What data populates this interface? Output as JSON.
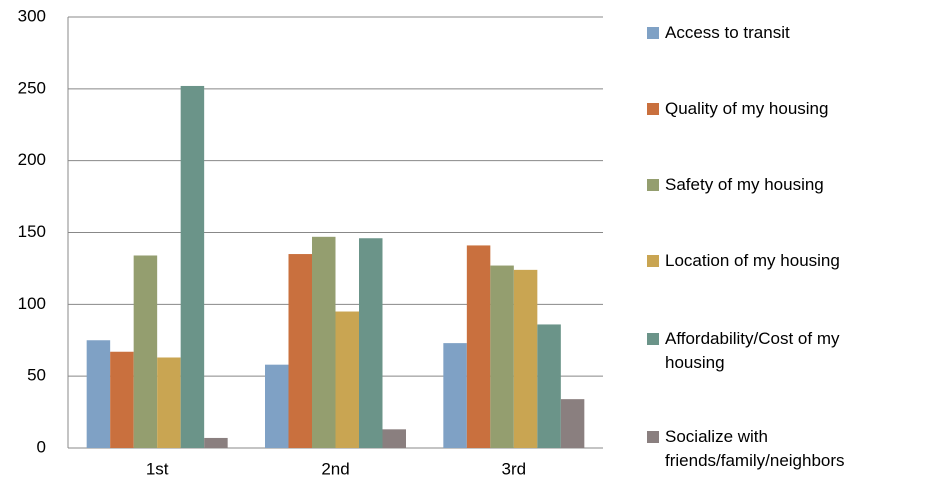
{
  "chart_data": {
    "type": "bar",
    "categories": [
      "1st",
      "2nd",
      "3rd"
    ],
    "series": [
      {
        "name": "Access to transit",
        "color": "#7fa1c5",
        "values": [
          75,
          58,
          73
        ]
      },
      {
        "name": "Quality of my housing",
        "color": "#c9703e",
        "values": [
          67,
          135,
          141
        ]
      },
      {
        "name": "Safety of my housing",
        "color": "#949e6f",
        "values": [
          134,
          147,
          127
        ]
      },
      {
        "name": "Location of my housing",
        "color": "#c9a552",
        "values": [
          63,
          95,
          124
        ]
      },
      {
        "name": "Affordability/Cost of my housing",
        "color": "#6b9489",
        "values": [
          252,
          146,
          86
        ]
      },
      {
        "name": "Socialize with friends/family/neighbors",
        "color": "#8a7f7f",
        "values": [
          7,
          13,
          34
        ]
      }
    ],
    "ylim": [
      0,
      300
    ],
    "yticks": [
      0,
      50,
      100,
      150,
      200,
      250,
      300
    ],
    "grid": true
  }
}
